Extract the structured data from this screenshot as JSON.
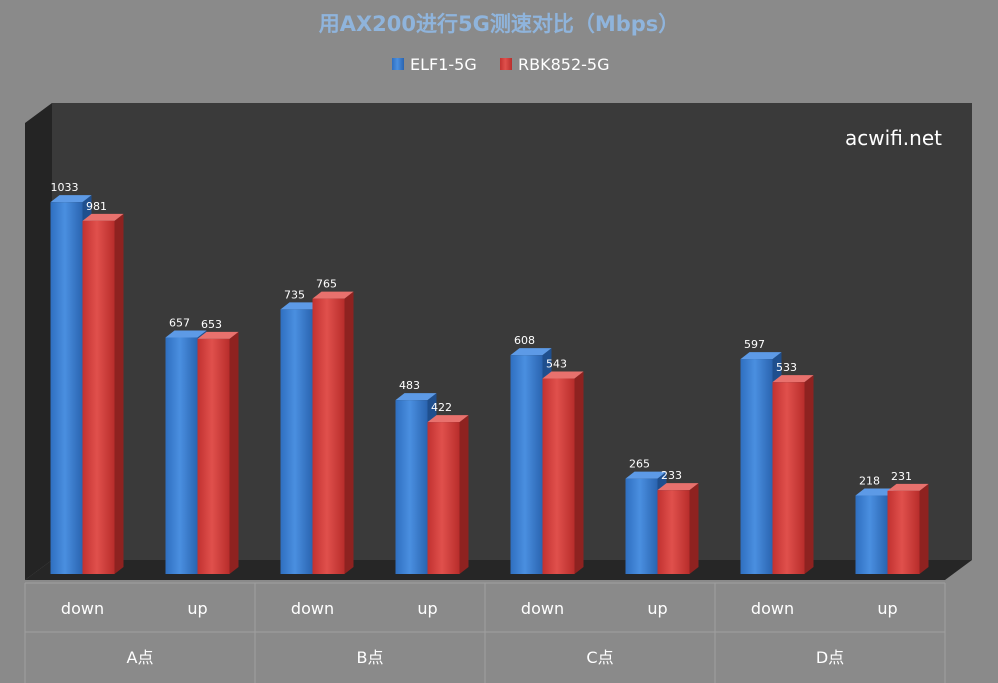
{
  "chart_data": {
    "type": "bar",
    "title": "用AX200进行5G测速对比（Mbps）",
    "watermark": "acwifi.net",
    "legend_position": "top",
    "groups": [
      {
        "label": "A点",
        "subcategories": [
          "down",
          "up"
        ]
      },
      {
        "label": "B点",
        "subcategories": [
          "down",
          "up"
        ]
      },
      {
        "label": "C点",
        "subcategories": [
          "down",
          "up"
        ]
      },
      {
        "label": "D点",
        "subcategories": [
          "down",
          "up"
        ]
      }
    ],
    "categories": [
      "down",
      "up",
      "down",
      "up",
      "down",
      "up",
      "down",
      "up"
    ],
    "series": [
      {
        "name": "ELF1-5G",
        "color": "#3a7fd4",
        "values": [
          1033,
          657,
          735,
          483,
          608,
          265,
          597,
          218
        ]
      },
      {
        "name": "RBK852-5G",
        "color": "#d63b39",
        "values": [
          981,
          653,
          765,
          422,
          543,
          233,
          533,
          231
        ]
      }
    ],
    "ylim": [
      0,
      1100
    ],
    "grid": false
  }
}
